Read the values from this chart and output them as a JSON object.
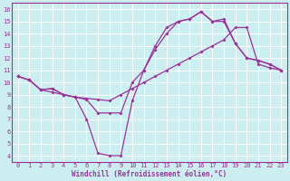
{
  "bg_color": "#cceef0",
  "grid_color": "#ffffff",
  "line_color": "#993399",
  "xlabel": "Windchill (Refroidissement éolien,°C)",
  "xlim": [
    -0.5,
    23.5
  ],
  "ylim": [
    3.5,
    16.5
  ],
  "xticks": [
    0,
    1,
    2,
    3,
    4,
    5,
    6,
    7,
    8,
    9,
    10,
    11,
    12,
    13,
    14,
    15,
    16,
    17,
    18,
    19,
    20,
    21,
    22,
    23
  ],
  "yticks": [
    4,
    5,
    6,
    7,
    8,
    9,
    10,
    11,
    12,
    13,
    14,
    15,
    16
  ],
  "line1_x": [
    0,
    1,
    2,
    3,
    4,
    5,
    6,
    7,
    8,
    9,
    10,
    11,
    12,
    13,
    14,
    15,
    16,
    17,
    18,
    19,
    20,
    21,
    22,
    23
  ],
  "line1_y": [
    10.5,
    10.2,
    9.4,
    9.5,
    9.0,
    8.8,
    7.0,
    4.2,
    4.0,
    4.0,
    8.5,
    11.0,
    12.7,
    14.0,
    15.0,
    15.2,
    15.8,
    15.0,
    15.2,
    13.2,
    12.0,
    11.8,
    11.5,
    11.0
  ],
  "line2_x": [
    0,
    1,
    2,
    3,
    4,
    5,
    6,
    7,
    8,
    9,
    10,
    11,
    12,
    13,
    14,
    15,
    16,
    17,
    18,
    19,
    20,
    21,
    22,
    23
  ],
  "line2_y": [
    10.5,
    10.2,
    9.4,
    9.5,
    9.0,
    8.8,
    8.6,
    7.5,
    7.5,
    7.5,
    10.0,
    11.0,
    13.0,
    14.5,
    15.0,
    15.2,
    15.8,
    15.0,
    15.0,
    13.2,
    12.0,
    11.8,
    11.5,
    11.0
  ],
  "line3_x": [
    0,
    1,
    2,
    3,
    4,
    5,
    6,
    7,
    8,
    9,
    10,
    11,
    12,
    13,
    14,
    15,
    16,
    17,
    18,
    19,
    20,
    21,
    22,
    23
  ],
  "line3_y": [
    10.5,
    10.2,
    9.4,
    9.2,
    9.0,
    8.8,
    8.7,
    8.6,
    8.5,
    9.0,
    9.5,
    10.0,
    10.5,
    11.0,
    11.5,
    12.0,
    12.5,
    13.0,
    13.5,
    14.5,
    14.5,
    11.5,
    11.2,
    11.0
  ],
  "marker": "D",
  "markersize": 2.0,
  "linewidth": 0.9,
  "tick_fontsize": 5.0,
  "xlabel_fontsize": 5.5
}
